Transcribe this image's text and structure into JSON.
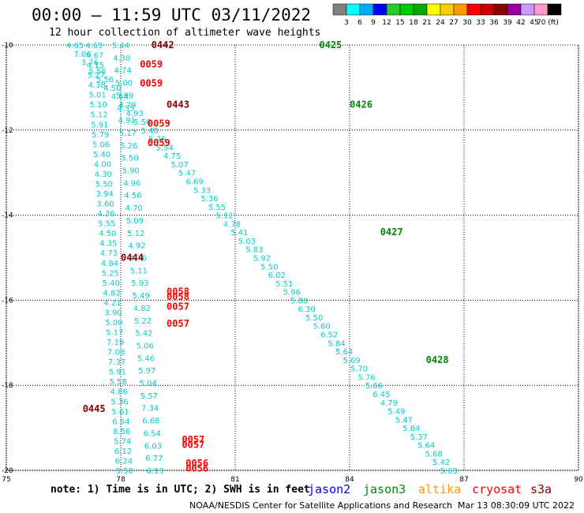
{
  "title": "00:00 – 11:59 UTC 03/11/2022",
  "subtitle": "12 hour collection of altimeter wave heights",
  "colorbar": {
    "colors": [
      "#808080",
      "#00ffff",
      "#00aaff",
      "#0000ff",
      "#22cc22",
      "#00cc00",
      "#00aa00",
      "#ffff00",
      "#ffcc00",
      "#ff9900",
      "#ff0000",
      "#cc0000",
      "#880000",
      "#990099",
      "#cc99ff",
      "#ff99cc",
      "#000000"
    ],
    "labels": [
      "3",
      "6",
      "9",
      "12",
      "15",
      "18",
      "21",
      "24",
      "27",
      "30",
      "33",
      "36",
      "39",
      "42",
      "45",
      "70 (ft)"
    ]
  },
  "note": "note: 1) Time is in UTC; 2) SWH is in feet",
  "legend": [
    {
      "name": "jason2",
      "color": "#0000ff"
    },
    {
      "name": "jason3",
      "color": "#008800"
    },
    {
      "name": "altika",
      "color": "#ff9900"
    },
    {
      "name": "cryosat",
      "color": "#ff0000"
    },
    {
      "name": "s3a",
      "color": "#880000"
    }
  ],
  "credit": "NOAA/NESDIS Center for Satellite Applications and Research",
  "timestamp": "Mar 13 08:30:09 UTC 2022",
  "chart_data": {
    "type": "scatter",
    "xlim": [
      75,
      90
    ],
    "ylim": [
      -20,
      -10
    ],
    "x_ticks": [
      "75",
      "78",
      "81",
      "84",
      "87",
      "90"
    ],
    "y_ticks": [
      "-10",
      "-12",
      "-14",
      "-16",
      "-18",
      "-20"
    ],
    "grid": true,
    "tracks": [
      {
        "satellite": "cryosat",
        "start": [
          77.3,
          -10.0
        ],
        "end": [
          78.1,
          -20.0
        ],
        "values": [
          "4.69",
          "4.67",
          "4.15",
          "5.27",
          "4.38",
          "5.01",
          "5.10",
          "5.12",
          "5.91",
          "5.79",
          "5.06",
          "5.40",
          "4.00",
          "4.30",
          "5.50",
          "3.94",
          "3.60",
          "4.36",
          "5.55",
          "4.50",
          "4.35",
          "4.73",
          "4.84",
          "5.25",
          "5.40",
          "4.82",
          "4.21",
          "3.90",
          "5.00",
          "5.17",
          "7.19",
          "7.08",
          "7.37",
          "5.91",
          "5.58",
          "4.86",
          "5.36",
          "5.61",
          "6.64",
          "8.56",
          "5.74",
          "6.12",
          "6.24",
          "5.58"
        ]
      },
      {
        "satellite": "cryosat",
        "start": [
          78.0,
          -10.0
        ],
        "end": [
          78.9,
          -20.0
        ],
        "values": [
          "5.44",
          "4.30",
          "4.74",
          "5.00",
          "5.99",
          "4.35",
          "4.91",
          "5.17",
          "5.26",
          "5.50",
          "5.90",
          "4.96",
          "4.56",
          "4.70",
          "5.09",
          "5.12",
          "4.92",
          "4.76",
          "5.11",
          "5.93",
          "5.49",
          "4.82",
          "5.22",
          "5.42",
          "5.06",
          "5.46",
          "5.97",
          "5.04",
          "5.57",
          "7.34",
          "6.68",
          "6.54",
          "6.03",
          "6.77",
          "6.13"
        ]
      },
      {
        "satellite": "jason3",
        "start": [
          76.8,
          -10.0
        ],
        "end": [
          86.6,
          -20.0
        ],
        "values": [
          "4.65",
          "7.06",
          "3.76",
          "5.56",
          "5.56",
          "4.50",
          "4.64",
          "4.79",
          "4.93",
          "5.56",
          "5.40",
          "5.76",
          "5.54",
          "4.75",
          "5.07",
          "5.47",
          "6.69",
          "5.33",
          "5.36",
          "5.55",
          "5.12",
          "4.78",
          "5.41",
          "5.03",
          "5.83",
          "5.92",
          "5.50",
          "6.02",
          "5.51",
          "5.96",
          "5.88",
          "6.30",
          "5.50",
          "5.60",
          "6.52",
          "5.84",
          "5.64",
          "5.69",
          "5.70",
          "5.76",
          "5.66",
          "6.45",
          "4.79",
          "5.49",
          "5.47",
          "5.64",
          "5.37",
          "5.64",
          "5.68",
          "5.42",
          "5.63"
        ]
      }
    ],
    "pass_labels": [
      {
        "text": "0442",
        "satellite": "s3a",
        "x": 79.1,
        "y": -10.0
      },
      {
        "text": "0059",
        "satellite": "cryosat",
        "x": 78.8,
        "y": -10.45
      },
      {
        "text": "0059",
        "satellite": "cryosat",
        "x": 78.8,
        "y": -10.9
      },
      {
        "text": "0443",
        "satellite": "s3a",
        "x": 79.5,
        "y": -11.4
      },
      {
        "text": "0059",
        "satellite": "cryosat",
        "x": 79.0,
        "y": -11.85
      },
      {
        "text": "0059",
        "satellite": "cryosat",
        "x": 79.0,
        "y": -12.3
      },
      {
        "text": "0444",
        "satellite": "s3a",
        "x": 78.3,
        "y": -15.0
      },
      {
        "text": "0058",
        "satellite": "cryosat",
        "x": 79.5,
        "y": -15.8
      },
      {
        "text": "0058",
        "satellite": "cryosat",
        "x": 79.5,
        "y": -15.92
      },
      {
        "text": "0057",
        "satellite": "cryosat",
        "x": 79.5,
        "y": -16.15
      },
      {
        "text": "0057",
        "satellite": "cryosat",
        "x": 79.5,
        "y": -16.55
      },
      {
        "text": "0445",
        "satellite": "s3a",
        "x": 77.3,
        "y": -18.55
      },
      {
        "text": "0057",
        "satellite": "cryosat",
        "x": 79.9,
        "y": -19.28
      },
      {
        "text": "0057",
        "satellite": "cryosat",
        "x": 79.9,
        "y": -19.4
      },
      {
        "text": "0056",
        "satellite": "cryosat",
        "x": 80.0,
        "y": -19.83
      },
      {
        "text": "0056",
        "satellite": "cryosat",
        "x": 80.0,
        "y": -19.95
      },
      {
        "text": "0425",
        "satellite": "jason3",
        "x": 83.5,
        "y": -10.0
      },
      {
        "text": "0426",
        "satellite": "jason3",
        "x": 84.3,
        "y": -11.4
      },
      {
        "text": "0427",
        "satellite": "jason3",
        "x": 85.1,
        "y": -14.4
      },
      {
        "text": "0428",
        "satellite": "jason3",
        "x": 86.3,
        "y": -17.4
      }
    ]
  }
}
